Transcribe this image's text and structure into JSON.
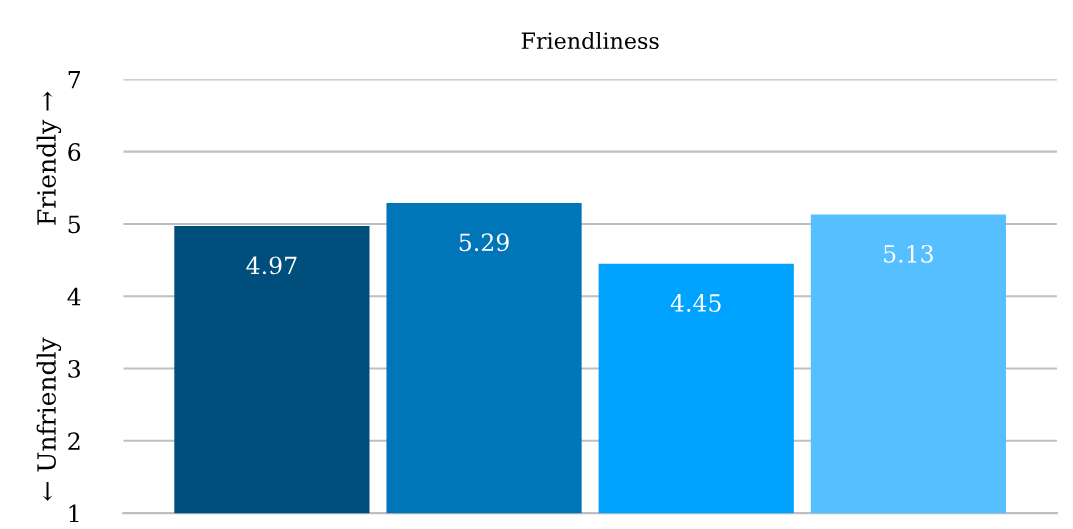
{
  "chart_data": {
    "type": "bar",
    "title": "Friendliness",
    "ylabel": "← Unfriendly              Friendly →",
    "categories": [
      null,
      null,
      null,
      null
    ],
    "values": [
      4.97,
      5.29,
      4.45,
      5.13
    ],
    "colors": [
      "#004e7c",
      "#0075b8",
      "#00a2ff",
      "#55bfff"
    ],
    "ylim": [
      1,
      7
    ],
    "yticks": [
      1,
      2,
      3,
      4,
      5,
      6,
      7
    ],
    "grid": "y",
    "data_labels": true
  }
}
